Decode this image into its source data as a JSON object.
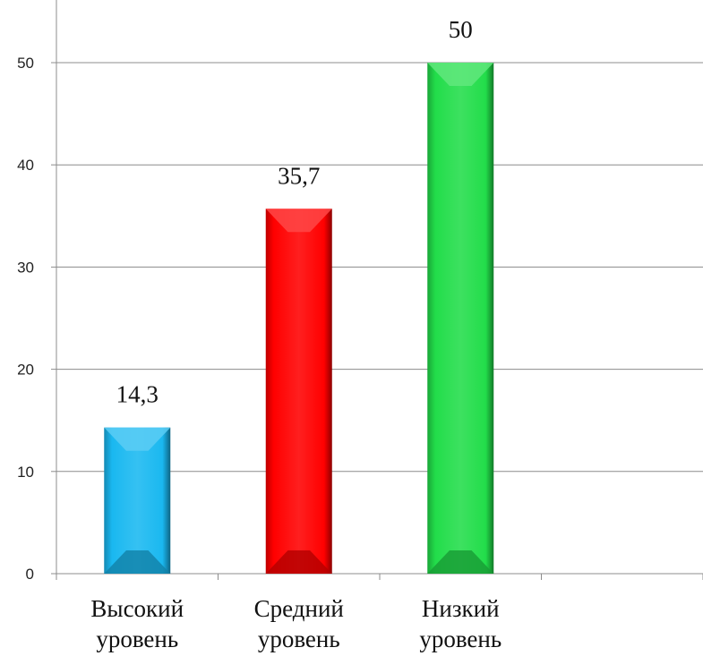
{
  "chart_data": {
    "type": "bar",
    "categories": [
      [
        "Высокий",
        "уровень"
      ],
      [
        "Средний",
        "уровень"
      ],
      [
        "Низкий",
        "уровень"
      ],
      []
    ],
    "values": [
      14.3,
      35.7,
      50,
      null
    ],
    "data_labels": [
      "14,3",
      "35,7",
      "50",
      ""
    ],
    "colors": [
      "#1ab8f0",
      "#ff0000",
      "#22dd4a",
      ""
    ],
    "yticks": [
      "0",
      "10",
      "20",
      "30",
      "40",
      "50"
    ],
    "ylim": [
      0,
      55
    ],
    "grid": true,
    "legend": "none",
    "title": "",
    "xlabel": "",
    "ylabel": ""
  }
}
